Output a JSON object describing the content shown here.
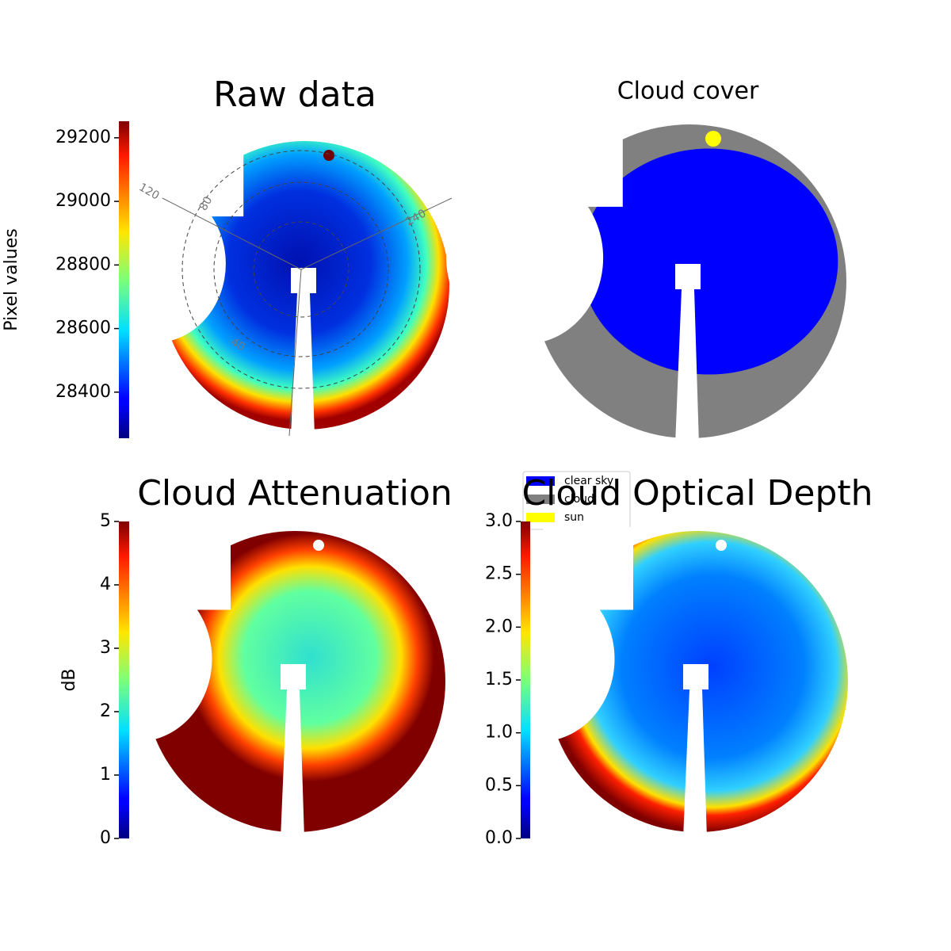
{
  "chart_data": [
    {
      "type": "image",
      "title": "Raw data",
      "colormap": "jet",
      "colorbar": {
        "label": "Pixel values",
        "ylim": [
          28255,
          29252
        ],
        "yticks": [
          28400,
          28600,
          28800,
          29000,
          29200
        ]
      },
      "annotations": [
        "120",
        "80",
        "240",
        "40"
      ]
    },
    {
      "type": "image",
      "title": "Cloud cover",
      "legend": [
        {
          "name": "clear sky",
          "color": "#0000ff"
        },
        {
          "name": "cloud",
          "color": "#808080"
        },
        {
          "name": "sun",
          "color": "#ffff00"
        }
      ]
    },
    {
      "type": "image",
      "title": "Cloud Attenuation",
      "colormap": "jet",
      "colorbar": {
        "label": "dB",
        "ylim": [
          0,
          5
        ],
        "yticks": [
          0,
          1,
          2,
          3,
          4,
          5
        ]
      }
    },
    {
      "type": "image",
      "title": "Cloud Optical Depth",
      "colormap": "jet",
      "colorbar": {
        "ylim": [
          0,
          3
        ],
        "yticks": [
          {
            "value": 0,
            "label": "0.0"
          },
          {
            "value": 0.5,
            "label": "0.5"
          },
          {
            "value": 1,
            "label": "1.0"
          },
          {
            "value": 1.5,
            "label": "1.5"
          },
          {
            "value": 2,
            "label": "2.0"
          },
          {
            "value": 2.5,
            "label": "2.5"
          },
          {
            "value": 3,
            "label": "3.0"
          }
        ]
      }
    }
  ]
}
